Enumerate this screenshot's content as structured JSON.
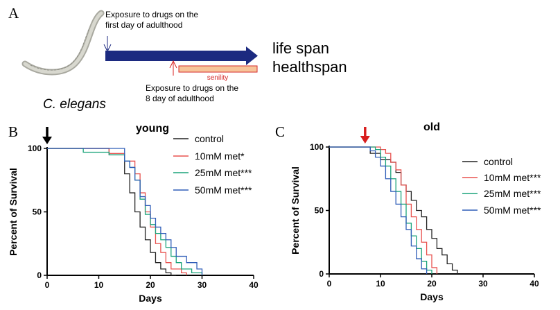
{
  "panel_a": {
    "label": "A",
    "organism": "C. elegans",
    "exposure_early": "Exposure to drugs on the first day of adulthood",
    "exposure_late": "Exposure to drugs on the 8 day of adulthood",
    "senility": "senility",
    "outcomes": [
      "life span",
      "healthspan"
    ]
  },
  "colors": {
    "control": "#222222",
    "met10": "#e8524f",
    "met25": "#1aa37a",
    "met50": "#2f5db8",
    "arrow_blue": "#1c2a80",
    "arrow_red": "#d81e1e",
    "senility_fill": "#f7c49a",
    "senility_border": "#d42a2a"
  },
  "chart_data": [
    {
      "panel_label": "B",
      "type": "line",
      "step": true,
      "title": "young",
      "xlabel": "Days",
      "ylabel": "Percent of Survival",
      "xlim": [
        0,
        40
      ],
      "ylim": [
        0,
        100
      ],
      "xticks": [
        0,
        10,
        20,
        30,
        40
      ],
      "yticks": [
        0,
        50,
        100
      ],
      "arrow_at_day": 0,
      "arrow_color": "black",
      "series": [
        {
          "name": "control",
          "x": [
            0,
            12,
            15,
            16,
            17,
            18,
            19,
            20,
            21,
            22,
            23,
            24,
            25
          ],
          "y": [
            100,
            95,
            80,
            65,
            50,
            38,
            28,
            18,
            10,
            5,
            2,
            0,
            0
          ]
        },
        {
          "name": "10mM met*",
          "x": [
            0,
            12,
            15,
            17,
            18,
            19,
            20,
            21,
            22,
            23,
            24,
            26,
            27
          ],
          "y": [
            100,
            96,
            90,
            80,
            65,
            50,
            38,
            25,
            18,
            10,
            5,
            2,
            0
          ]
        },
        {
          "name": "25mM met***",
          "x": [
            0,
            7,
            12,
            15,
            16,
            17,
            18,
            19,
            20,
            21,
            22,
            23,
            24,
            25,
            26,
            28,
            30
          ],
          "y": [
            100,
            97,
            95,
            90,
            85,
            75,
            60,
            48,
            40,
            33,
            28,
            22,
            15,
            10,
            5,
            2,
            0
          ]
        },
        {
          "name": "50mM met***",
          "x": [
            0,
            15,
            16,
            17,
            18,
            19,
            20,
            21,
            22,
            23,
            24,
            25,
            27,
            29,
            30
          ],
          "y": [
            100,
            90,
            85,
            75,
            62,
            55,
            45,
            38,
            33,
            28,
            22,
            15,
            10,
            5,
            0
          ]
        }
      ]
    },
    {
      "panel_label": "C",
      "type": "line",
      "step": true,
      "title": "old",
      "xlabel": "Days",
      "ylabel": "Percent of Survival",
      "xlim": [
        0,
        40
      ],
      "ylim": [
        0,
        100
      ],
      "xticks": [
        0,
        10,
        20,
        30,
        40
      ],
      "yticks": [
        0,
        50,
        100
      ],
      "arrow_at_day": 7,
      "arrow_color": "red",
      "series": [
        {
          "name": "control",
          "x": [
            0,
            8,
            10,
            12,
            13,
            14,
            15,
            16,
            17,
            18,
            19,
            20,
            21,
            22,
            23,
            24,
            25
          ],
          "y": [
            100,
            95,
            90,
            88,
            80,
            70,
            65,
            58,
            50,
            45,
            35,
            28,
            20,
            15,
            8,
            3,
            0
          ]
        },
        {
          "name": "10mM met***",
          "x": [
            0,
            10,
            11,
            12,
            13,
            14,
            15,
            16,
            17,
            18,
            19,
            20,
            21
          ],
          "y": [
            100,
            98,
            95,
            88,
            82,
            70,
            55,
            45,
            35,
            25,
            15,
            5,
            0
          ]
        },
        {
          "name": "25mM met***",
          "x": [
            0,
            9,
            10,
            11,
            12,
            13,
            14,
            15,
            16,
            17,
            18,
            19,
            20
          ],
          "y": [
            100,
            98,
            92,
            85,
            75,
            65,
            55,
            40,
            30,
            20,
            10,
            3,
            0
          ]
        },
        {
          "name": "50mM met***",
          "x": [
            0,
            8,
            9,
            10,
            11,
            12,
            13,
            14,
            15,
            16,
            17,
            18,
            19
          ],
          "y": [
            100,
            97,
            92,
            85,
            75,
            65,
            55,
            45,
            35,
            22,
            12,
            4,
            0
          ]
        }
      ]
    }
  ]
}
